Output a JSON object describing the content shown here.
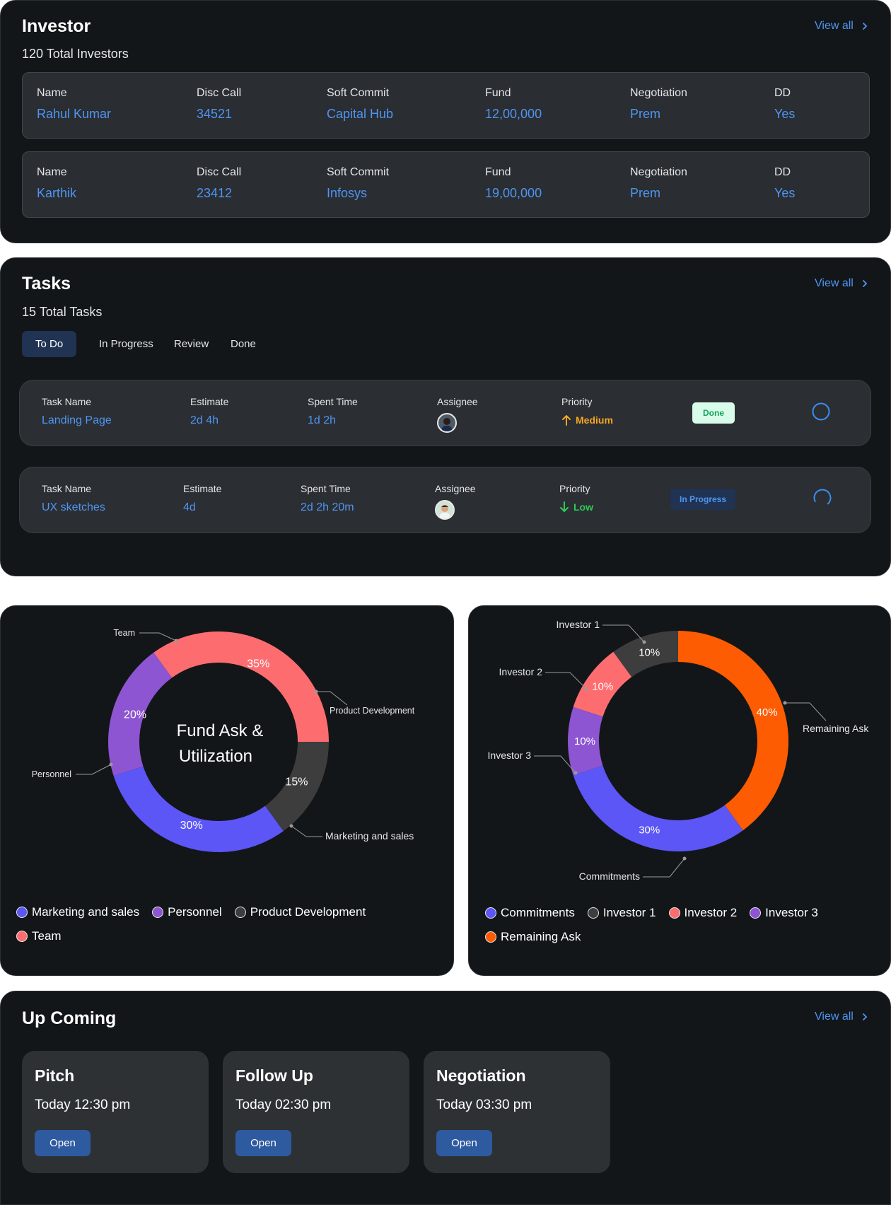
{
  "investor": {
    "title": "Investor",
    "subtitle": "120 Total Investors",
    "view_all": "View all",
    "columns": [
      "Name",
      "Disc Call",
      "Soft Commit",
      "Fund",
      "Negotiation",
      "DD"
    ],
    "rows": [
      [
        "Rahul Kumar",
        "34521",
        "Capital Hub",
        "12,00,000",
        "Prem",
        "Yes"
      ],
      [
        "Karthik",
        "23412",
        "Infosys",
        "19,00,000",
        "Prem",
        "Yes"
      ]
    ]
  },
  "tasks": {
    "title": "Tasks",
    "subtitle": "15 Total Tasks",
    "view_all": "View all",
    "tabs": [
      "To Do",
      "In Progress",
      "Review",
      "Done"
    ],
    "columns": [
      "Task Name",
      "Estimate",
      "Spent Time",
      "Assignee",
      "Priority"
    ],
    "rows": [
      {
        "name": "Landing Page",
        "estimate": "2d 4h",
        "spent": "1d 2h",
        "priority": "Medium",
        "status": "Done"
      },
      {
        "name": "UX sketches",
        "estimate": "4d",
        "spent": "2d 2h 20m",
        "priority": "Low",
        "status": "In Progress"
      }
    ]
  },
  "colors": {
    "accent": "#4f95f2",
    "marketing": "#5b56f5",
    "personnel": "#8d55d1",
    "product": "#3d3d3e",
    "team": "#fd6d70",
    "remaining": "#fd5c02",
    "medium": "#f5a623",
    "low": "#2ecc55"
  },
  "chart_data": [
    {
      "type": "pie",
      "title": "Fund Ask & Utilization",
      "title_lines": [
        "Fund Ask &",
        "Utilization"
      ],
      "categories": [
        "Team",
        "Product Development",
        "Marketing and sales",
        "Personnel"
      ],
      "values": [
        35,
        15,
        30,
        20
      ],
      "value_labels": [
        "35%",
        "15%",
        "30%",
        "20%"
      ],
      "legend": [
        "Marketing and sales",
        "Personnel",
        "Product Development",
        "Team"
      ]
    },
    {
      "type": "pie",
      "categories": [
        "Investor 1",
        "Remaining Ask",
        "Commitments",
        "Investor 3",
        "Investor 2"
      ],
      "values": [
        10,
        40,
        30,
        10,
        10
      ],
      "value_labels": [
        "10%",
        "40%",
        "30%",
        "10%",
        "10%"
      ],
      "legend": [
        "Commitments",
        "Investor 1",
        "Investor 2",
        "Investor 3",
        "Remaining Ask"
      ]
    }
  ],
  "upcoming": {
    "title": "Up Coming",
    "view_all": "View all",
    "cards": [
      {
        "title": "Pitch",
        "time": "Today 12:30 pm",
        "button": "Open"
      },
      {
        "title": "Follow Up",
        "time": "Today 02:30 pm",
        "button": "Open"
      },
      {
        "title": "Negotiation",
        "time": "Today 03:30 pm",
        "button": "Open"
      }
    ]
  }
}
